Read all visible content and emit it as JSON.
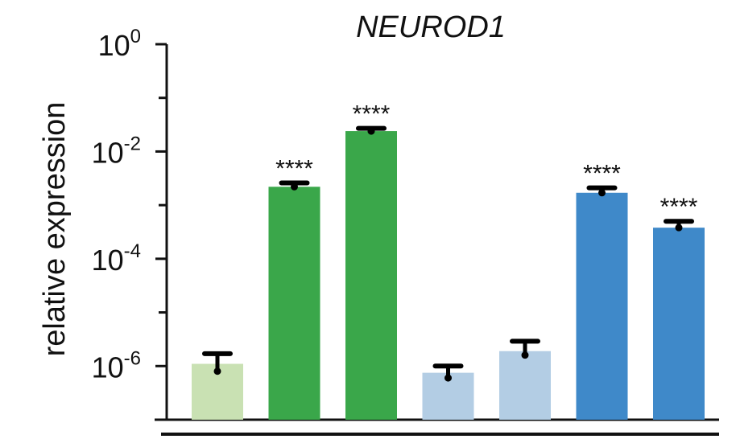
{
  "chart_data": {
    "type": "bar",
    "title": "NEUROD1",
    "ylabel": "relative expression",
    "xlabel": "",
    "yscale": "log",
    "ylim": [
      1e-07,
      1
    ],
    "ytick_labels": [
      {
        "base": "10",
        "exp": "0"
      },
      {
        "base": "10",
        "exp": "-2"
      },
      {
        "base": "10",
        "exp": "-4"
      },
      {
        "base": "10",
        "exp": "-6"
      }
    ],
    "ytick_values": [
      1,
      0.01,
      0.0001,
      1e-06
    ],
    "minor_tick_values": [
      0.1,
      0.001,
      1e-05
    ],
    "bars": [
      {
        "value": 1.1e-06,
        "err_high": 1.7e-06,
        "err_low": 8e-07,
        "color": "#c9e1b3",
        "significance": ""
      },
      {
        "value": 0.0022,
        "err_high": 0.0026,
        "err_low": 0.0022,
        "color": "#3aa74a",
        "significance": "****"
      },
      {
        "value": 0.024,
        "err_high": 0.027,
        "err_low": 0.024,
        "color": "#3aa74a",
        "significance": "****"
      },
      {
        "value": 7.5e-07,
        "err_high": 1e-06,
        "err_low": 6e-07,
        "color": "#b3cde4",
        "significance": ""
      },
      {
        "value": 1.9e-06,
        "err_high": 2.9e-06,
        "err_low": 1.6e-06,
        "color": "#b3cde4",
        "significance": ""
      },
      {
        "value": 0.0017,
        "err_high": 0.0021,
        "err_low": 0.0017,
        "color": "#3f89c9",
        "significance": "****"
      },
      {
        "value": 0.00038,
        "err_high": 0.0005,
        "err_low": 0.00038,
        "color": "#3f89c9",
        "significance": "****"
      }
    ],
    "grid": false,
    "legend": "none"
  }
}
